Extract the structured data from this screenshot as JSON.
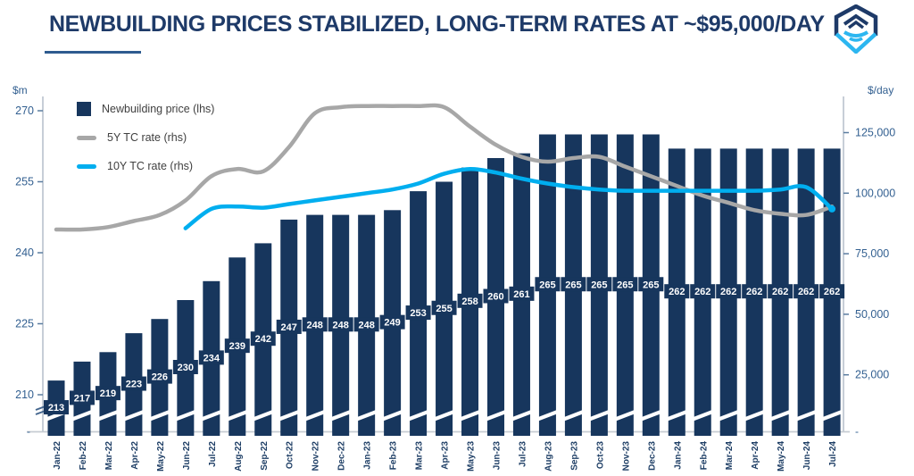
{
  "header": {
    "title": "NEWBUILDING PRICES STABILIZED, LONG-TERM RATES AT ~$95,000/DAY"
  },
  "chart_data": {
    "type": "bar",
    "subtype": "combo bar+line, dual axis, broken left axis",
    "categories": [
      "Jan-22",
      "Feb-22",
      "Mar-22",
      "Apr-22",
      "May-22",
      "Jun-22",
      "Jul-22",
      "Aug-22",
      "Sep-22",
      "Oct-22",
      "Nov-22",
      "Dec-22",
      "Jan-23",
      "Feb-23",
      "Mar-23",
      "Apr-23",
      "May-23",
      "Jun-23",
      "Jul-23",
      "Aug-23",
      "Sep-23",
      "Oct-23",
      "Nov-23",
      "Dec-23",
      "Jan-24",
      "Feb-24",
      "Mar-24",
      "Apr-24",
      "May-24",
      "Jun-24",
      "Jul-24"
    ],
    "series": [
      {
        "name": "Newbuilding price (lhs)",
        "type": "bar",
        "axis": "left",
        "color": "#17365d",
        "values": [
          213,
          217,
          219,
          223,
          226,
          230,
          234,
          239,
          242,
          247,
          248,
          248,
          248,
          249,
          253,
          255,
          258,
          260,
          261,
          265,
          265,
          265,
          265,
          265,
          262,
          262,
          262,
          262,
          262,
          262,
          262
        ],
        "data_labels": true
      },
      {
        "name": "5Y TC rate (rhs)",
        "type": "line",
        "axis": "right",
        "color": "#a7a7a7",
        "values": [
          85000,
          85000,
          86000,
          88500,
          91000,
          97000,
          107000,
          110000,
          109000,
          119000,
          133000,
          135500,
          136000,
          136000,
          136000,
          135500,
          127500,
          120000,
          115000,
          113000,
          114500,
          115000,
          111000,
          107000,
          103000,
          99000,
          96000,
          93000,
          91500,
          91000,
          94500
        ]
      },
      {
        "name": "10Y TC rate (rhs)",
        "type": "line",
        "axis": "right",
        "color": "#00aeef",
        "values": [
          null,
          null,
          null,
          null,
          null,
          85500,
          93500,
          94500,
          94000,
          95500,
          97000,
          98500,
          100000,
          101500,
          104000,
          108000,
          110000,
          108500,
          106000,
          104000,
          102500,
          101500,
          101000,
          101000,
          101000,
          101000,
          101000,
          101000,
          101500,
          102500,
          93500
        ]
      }
    ],
    "left_axis": {
      "label": "$m",
      "ticks": [
        270,
        255,
        240,
        225,
        210
      ],
      "break_label": "-",
      "broken": true,
      "range_shown": [
        210,
        270
      ]
    },
    "right_axis": {
      "label": "$/day",
      "ticks": [
        "125,000",
        "100,000",
        "75,000",
        "50,000",
        "25,000"
      ],
      "break_label": "-",
      "range": [
        0,
        137500
      ]
    },
    "legend_position": "top-left",
    "grid": false,
    "colors": {
      "bar": "#17365d",
      "line_5y": "#a7a7a7",
      "line_10y": "#00aeef",
      "title": "#1e3a68",
      "tick_text": "#336091",
      "month_text": "#1f3f66",
      "axis_line": "#b9c2cd",
      "logo_navy": "#1e3a68",
      "logo_cyan": "#2cb6f0"
    }
  }
}
